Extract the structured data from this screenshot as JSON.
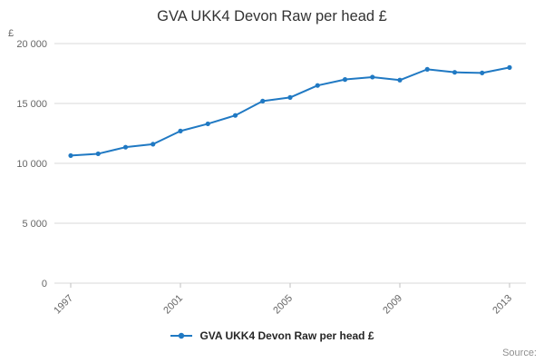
{
  "header": {
    "title": "GVA UKK4 Devon Raw per head £"
  },
  "chart_data": {
    "type": "line",
    "title": "GVA UKK4 Devon Raw per head £",
    "xlabel": "",
    "ylabel": "£",
    "x": [
      1997,
      1998,
      1999,
      2000,
      2001,
      2002,
      2003,
      2004,
      2005,
      2006,
      2007,
      2008,
      2009,
      2010,
      2011,
      2012,
      2013
    ],
    "series": [
      {
        "name": "GVA UKK4 Devon Raw per head £",
        "values": [
          10650,
          10800,
          11350,
          11600,
          12700,
          13300,
          14000,
          15200,
          15500,
          16500,
          17000,
          17200,
          16950,
          17850,
          17600,
          17550,
          18000
        ],
        "color": "#2079c3"
      }
    ],
    "ylim": [
      0,
      20000
    ],
    "yticks": [
      0,
      5000,
      10000,
      15000,
      20000
    ],
    "ytick_labels": [
      "0",
      "5 000",
      "10 000",
      "15 000",
      "20 000"
    ],
    "xticks": [
      1997,
      2001,
      2005,
      2009,
      2013
    ],
    "grid": true,
    "legend_position": "bottom"
  },
  "legend": {
    "label": "GVA UKK4 Devon Raw per head £"
  },
  "footer": {
    "source_label": "Source:"
  },
  "colors": {
    "line": "#2079c3",
    "grid": "#d9d9d9",
    "tick": "#bfbfbf",
    "tick_text": "#666666",
    "title_text": "#333333"
  }
}
